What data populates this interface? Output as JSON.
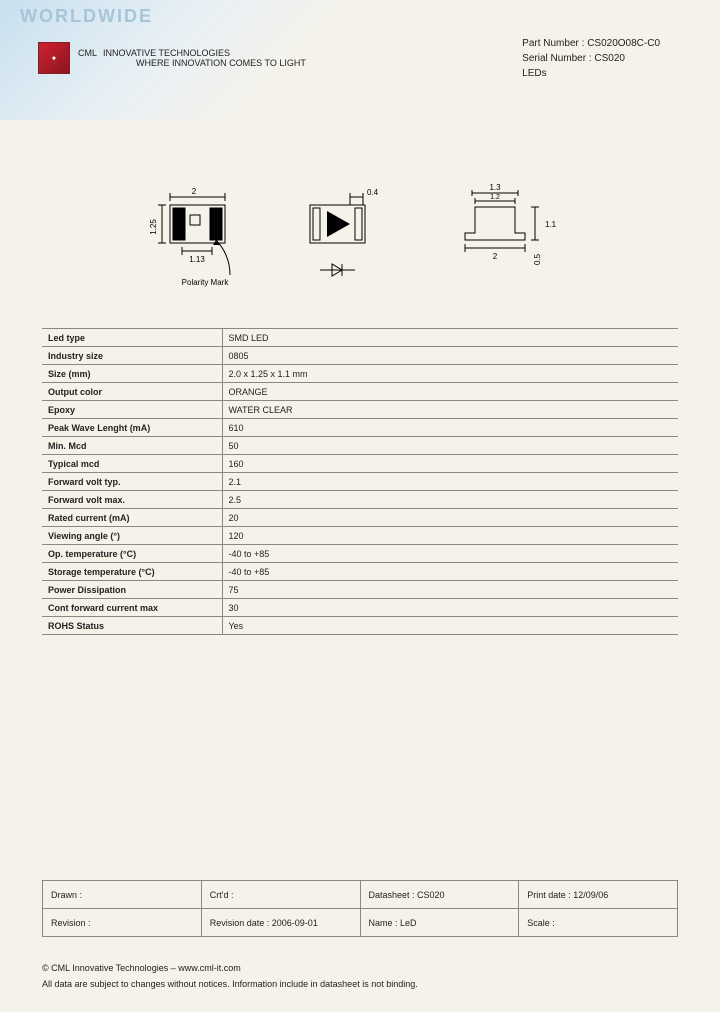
{
  "header": {
    "worldwide": "WORLDWIDE",
    "logo_cml": "CML",
    "logo_tag1": "INNOVATIVE TECHNOLOGIES",
    "logo_tag2": "WHERE INNOVATION COMES TO LIGHT",
    "part_label": "Part Number :",
    "part_number": "CS020O08C-C0",
    "serial_label": "Serial Number :",
    "serial_number": "CS020",
    "category": "LEDs"
  },
  "diagram": {
    "dim_2": "2",
    "dim_1_25": "1.25",
    "dim_1_13": "1.13",
    "dim_0_4": "0.4",
    "dim_1_3": "1.3",
    "dim_1_2": "1.2",
    "dim_1_1": "1.1",
    "dim_0_5": "0.5",
    "polarity": "Polarity Mark",
    "colors": {
      "line": "#000000",
      "fill": "#000000",
      "bg": "#f5f2ea"
    }
  },
  "specs": {
    "rows": [
      {
        "label": "Led type",
        "value": "SMD LED"
      },
      {
        "label": "Industry size",
        "value": "0805"
      },
      {
        "label": "Size (mm)",
        "value": "2.0 x 1.25 x 1.1 mm"
      },
      {
        "label": "Output color",
        "value": "ORANGE"
      },
      {
        "label": "Epoxy",
        "value": "WATER CLEAR"
      },
      {
        "label": "Peak Wave Lenght (mA)",
        "value": "610"
      },
      {
        "label": "Min. Mcd",
        "value": "50"
      },
      {
        "label": "Typical mcd",
        "value": "160"
      },
      {
        "label": "Forward volt typ.",
        "value": "2.1"
      },
      {
        "label": "Forward volt max.",
        "value": "2.5"
      },
      {
        "label": "Rated current (mA)",
        "value": "20"
      },
      {
        "label": "Viewing angle (°)",
        "value": "120"
      },
      {
        "label": "Op. temperature (°C)",
        "value": "-40 to +85"
      },
      {
        "label": "Storage temperature (°C)",
        "value": "-40 to +85"
      },
      {
        "label": "Power Dissipation",
        "value": "75"
      },
      {
        "label": "Cont forward current max",
        "value": "30"
      },
      {
        "label": "ROHS Status",
        "value": "Yes"
      }
    ]
  },
  "footer_table": {
    "rows": [
      [
        {
          "label": "Drawn :",
          "value": ""
        },
        {
          "label": "Crt'd :",
          "value": ""
        },
        {
          "label": "Datasheet :",
          "value": "CS020"
        },
        {
          "label": "Print date :",
          "value": "12/09/06"
        }
      ],
      [
        {
          "label": "Revision :",
          "value": ""
        },
        {
          "label": "Revision date :",
          "value": "2006-09-01"
        },
        {
          "label": "Name :",
          "value": "LeD"
        },
        {
          "label": "Scale :",
          "value": ""
        }
      ]
    ]
  },
  "footer_notes": {
    "line1": "© CML Innovative Technologies – www.cml-it.com",
    "line2": "All data are subject to changes without notices. Information include in datasheet is not binding."
  },
  "colors": {
    "bg": "#f5f2ea",
    "border": "#888888",
    "text": "#222222",
    "brand_blue": "#003b6f",
    "brand_red": "#c02030",
    "header_gradient_start": "#c8e0ef"
  }
}
